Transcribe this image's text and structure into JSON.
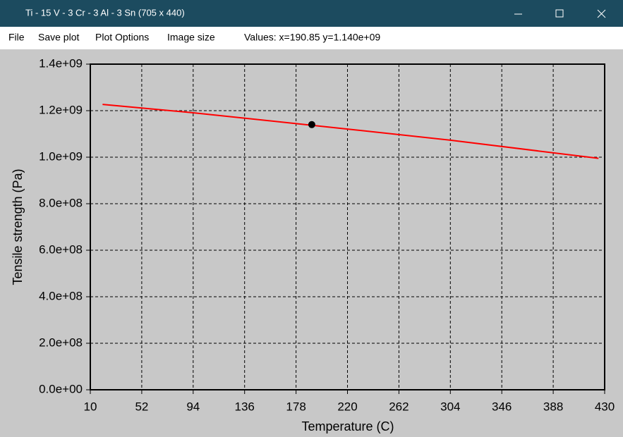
{
  "window": {
    "title": "Ti - 15 V - 3 Cr - 3 Al - 3 Sn (705 x 440)"
  },
  "menu": [
    "File",
    "Save plot",
    "Plot Options",
    "Image size"
  ],
  "status": "Values: x=190.85 y=1.140e+09",
  "chart_data": {
    "type": "line",
    "xlabel": "Temperature (C)",
    "ylabel": "Tensile strength (Pa)",
    "x": [
      20,
      94,
      220,
      304,
      425
    ],
    "values": [
      1227000000,
      1191000000,
      1121000000,
      1073000000,
      995000000
    ],
    "color": "#ff0000",
    "marker": {
      "x": 190.85,
      "y": 1140000000,
      "color": "#000000"
    },
    "xlim": [
      10,
      430
    ],
    "xticks": [
      10,
      52,
      94,
      136,
      178,
      220,
      262,
      304,
      346,
      388,
      430
    ],
    "ylim": [
      0,
      1400000000
    ],
    "yticks": [
      {
        "value": 0,
        "label": "0.0e+00"
      },
      {
        "value": 200000000,
        "label": "2.0e+08"
      },
      {
        "value": 400000000,
        "label": "4.0e+08"
      },
      {
        "value": 600000000,
        "label": "6.0e+08"
      },
      {
        "value": 800000000,
        "label": "8.0e+08"
      },
      {
        "value": 1000000000,
        "label": "1.0e+09"
      },
      {
        "value": 1200000000,
        "label": "1.2e+09"
      },
      {
        "value": 1400000000,
        "label": "1.4e+09"
      }
    ],
    "grid": true
  }
}
